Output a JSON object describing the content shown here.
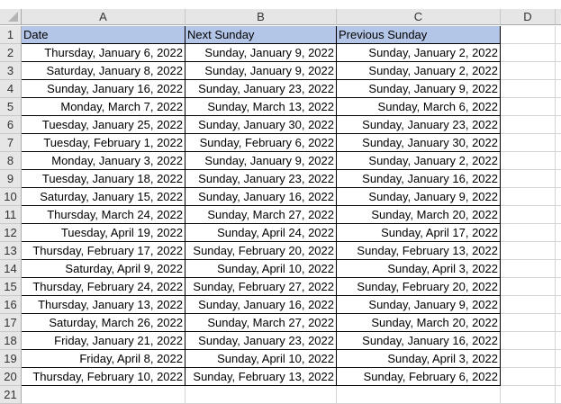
{
  "columns": [
    "A",
    "B",
    "C",
    "D"
  ],
  "headers": [
    "Date",
    "Next Sunday",
    "Previous Sunday"
  ],
  "rows": [
    [
      "Thursday, January 6, 2022",
      "Sunday, January 9, 2022",
      "Sunday, January 2, 2022"
    ],
    [
      "Saturday, January 8, 2022",
      "Sunday, January 9, 2022",
      "Sunday, January 2, 2022"
    ],
    [
      "Sunday, January 16, 2022",
      "Sunday, January 23, 2022",
      "Sunday, January 9, 2022"
    ],
    [
      "Monday, March 7, 2022",
      "Sunday, March 13, 2022",
      "Sunday, March 6, 2022"
    ],
    [
      "Tuesday, January 25, 2022",
      "Sunday, January 30, 2022",
      "Sunday, January 23, 2022"
    ],
    [
      "Tuesday, February 1, 2022",
      "Sunday, February 6, 2022",
      "Sunday, January 30, 2022"
    ],
    [
      "Monday, January 3, 2022",
      "Sunday, January 9, 2022",
      "Sunday, January 2, 2022"
    ],
    [
      "Tuesday, January 18, 2022",
      "Sunday, January 23, 2022",
      "Sunday, January 16, 2022"
    ],
    [
      "Saturday, January 15, 2022",
      "Sunday, January 16, 2022",
      "Sunday, January 9, 2022"
    ],
    [
      "Thursday, March 24, 2022",
      "Sunday, March 27, 2022",
      "Sunday, March 20, 2022"
    ],
    [
      "Tuesday, April 19, 2022",
      "Sunday, April 24, 2022",
      "Sunday, April 17, 2022"
    ],
    [
      "Thursday, February 17, 2022",
      "Sunday, February 20, 2022",
      "Sunday, February 13, 2022"
    ],
    [
      "Saturday, April 9, 2022",
      "Sunday, April 10, 2022",
      "Sunday, April 3, 2022"
    ],
    [
      "Thursday, February 24, 2022",
      "Sunday, February 27, 2022",
      "Sunday, February 20, 2022"
    ],
    [
      "Thursday, January 13, 2022",
      "Sunday, January 16, 2022",
      "Sunday, January 9, 2022"
    ],
    [
      "Saturday, March 26, 2022",
      "Sunday, March 27, 2022",
      "Sunday, March 20, 2022"
    ],
    [
      "Friday, January 21, 2022",
      "Sunday, January 23, 2022",
      "Sunday, January 16, 2022"
    ],
    [
      "Friday, April 8, 2022",
      "Sunday, April 10, 2022",
      "Sunday, April 3, 2022"
    ],
    [
      "Thursday, February 10, 2022",
      "Sunday, February 13, 2022",
      "Sunday, February 6, 2022"
    ]
  ],
  "row_numbers": [
    "1",
    "2",
    "3",
    "4",
    "5",
    "6",
    "7",
    "8",
    "9",
    "10",
    "11",
    "12",
    "13",
    "14",
    "15",
    "16",
    "17",
    "18",
    "19",
    "20",
    "21"
  ],
  "colors": {
    "header_fill": "#b4c6e7"
  }
}
